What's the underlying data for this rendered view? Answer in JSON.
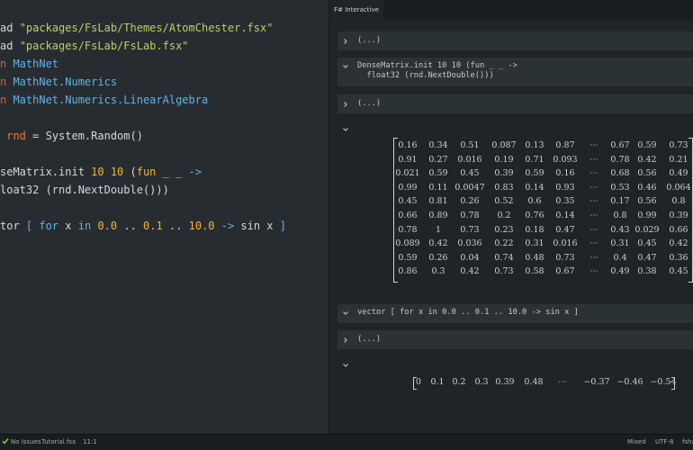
{
  "editor": {
    "lines": [
      [
        {
          "text": "ad ",
          "color": "#d6d6d6"
        },
        {
          "text": "\"packages/FsLab/Themes/AtomChester.fsx\"",
          "color": "#b5d36b"
        }
      ],
      [
        {
          "text": "ad ",
          "color": "#d6d6d6"
        },
        {
          "text": "\"packages/FsLab/FsLab.fsx\"",
          "color": "#b5d36b"
        }
      ],
      [
        {
          "text": "n ",
          "color": "#e4563d"
        },
        {
          "text": "MathNet",
          "color": "#5fb3e8"
        }
      ],
      [
        {
          "text": "n ",
          "color": "#e4563d"
        },
        {
          "text": "MathNet.Numerics",
          "color": "#5fb3e8"
        }
      ],
      [
        {
          "text": "n ",
          "color": "#e4563d"
        },
        {
          "text": "MathNet.Numerics.LinearAlgebra",
          "color": "#5fb3e8"
        }
      ],
      [],
      [
        {
          "text": " rnd",
          "color": "#f07a3c"
        },
        {
          "text": " = System.Random()",
          "color": "#d6d6d6"
        }
      ],
      [],
      [
        {
          "text": "seMatrix.init ",
          "color": "#d6d6d6"
        },
        {
          "text": "10 10",
          "color": "#f2b635"
        },
        {
          "text": " (",
          "color": "#d6d6d6"
        },
        {
          "text": "fun",
          "color": "#f2b635"
        },
        {
          "text": " _ _ ",
          "color": "#d6d6d6"
        },
        {
          "text": "->",
          "color": "#5fb3e8"
        }
      ],
      [
        {
          "text": "loat32 (rnd.NextDouble()))",
          "color": "#d6d6d6"
        }
      ],
      [],
      [
        {
          "text": "tor ",
          "color": "#d6d6d6"
        },
        {
          "text": "[ for",
          "color": "#5fb3e8"
        },
        {
          "text": " x ",
          "color": "#d6d6d6"
        },
        {
          "text": "in",
          "color": "#5fb3e8"
        },
        {
          "text": " ",
          "color": "#d6d6d6"
        },
        {
          "text": "0.0",
          "color": "#f2b635"
        },
        {
          "text": " .. ",
          "color": "#d6d6d6"
        },
        {
          "text": "0.1",
          "color": "#f2b635"
        },
        {
          "text": " .. ",
          "color": "#d6d6d6"
        },
        {
          "text": "10.0",
          "color": "#f2b635"
        },
        {
          "text": " ",
          "color": "#d6d6d6"
        },
        {
          "text": "->",
          "color": "#5fb3e8"
        },
        {
          "text": " sin x ",
          "color": "#d6d6d6"
        },
        {
          "text": "]",
          "color": "#5fb3e8"
        }
      ]
    ]
  },
  "panel": {
    "tab": "F# Interactive",
    "cells": [
      {
        "kind": "collapsed",
        "text": "(...)"
      },
      {
        "kind": "code",
        "lines": [
          "DenseMatrix.init 10 10 (fun _ _ ->",
          "  float32 (rnd.NextDouble()))"
        ]
      },
      {
        "kind": "collapsed",
        "text": "(...)"
      },
      {
        "kind": "matrix",
        "rows": [
          [
            "0.16",
            "0.34",
            "0.51",
            "0.087",
            "0.13",
            "0.87",
            "⋯",
            "0.67",
            "0.59",
            "0.73"
          ],
          [
            "0.91",
            "0.27",
            "0.016",
            "0.19",
            "0.71",
            "0.093",
            "⋯",
            "0.78",
            "0.42",
            "0.21"
          ],
          [
            "0.021",
            "0.59",
            "0.45",
            "0.39",
            "0.59",
            "0.16",
            "⋯",
            "0.68",
            "0.56",
            "0.49"
          ],
          [
            "0.99",
            "0.11",
            "0.0047",
            "0.83",
            "0.14",
            "0.93",
            "⋯",
            "0.53",
            "0.46",
            "0.064"
          ],
          [
            "0.45",
            "0.81",
            "0.26",
            "0.52",
            "0.6",
            "0.35",
            "⋯",
            "0.17",
            "0.56",
            "0.8"
          ],
          [
            "0.66",
            "0.89",
            "0.78",
            "0.2",
            "0.76",
            "0.14",
            "⋯",
            "0.8",
            "0.99",
            "0.39"
          ],
          [
            "0.78",
            "1",
            "0.73",
            "0.23",
            "0.18",
            "0.47",
            "⋯",
            "0.43",
            "0.029",
            "0.66"
          ],
          [
            "0.089",
            "0.42",
            "0.036",
            "0.22",
            "0.31",
            "0.016",
            "⋯",
            "0.31",
            "0.45",
            "0.42"
          ],
          [
            "0.59",
            "0.26",
            "0.04",
            "0.74",
            "0.48",
            "0.73",
            "⋯",
            "0.4",
            "0.47",
            "0.36"
          ],
          [
            "0.86",
            "0.3",
            "0.42",
            "0.73",
            "0.58",
            "0.67",
            "⋯",
            "0.49",
            "0.38",
            "0.45"
          ]
        ]
      },
      {
        "kind": "code",
        "lines": [
          "vector [ for x in 0.0 .. 0.1 .. 10.0 -> sin x ]"
        ]
      },
      {
        "kind": "collapsed",
        "text": "(...)"
      },
      {
        "kind": "vector",
        "values": [
          "0",
          "0.1",
          "0.2",
          "0.3",
          "0.39",
          "0.48",
          "⋯",
          "−0.37",
          "−0.46",
          "−0.54"
        ]
      }
    ]
  },
  "status": {
    "issues": "No Issues",
    "file": "Tutorial.fsx",
    "position": "11:1",
    "line_ending": "Mixed",
    "encoding": "UTF-8",
    "grammar": "fsha"
  }
}
